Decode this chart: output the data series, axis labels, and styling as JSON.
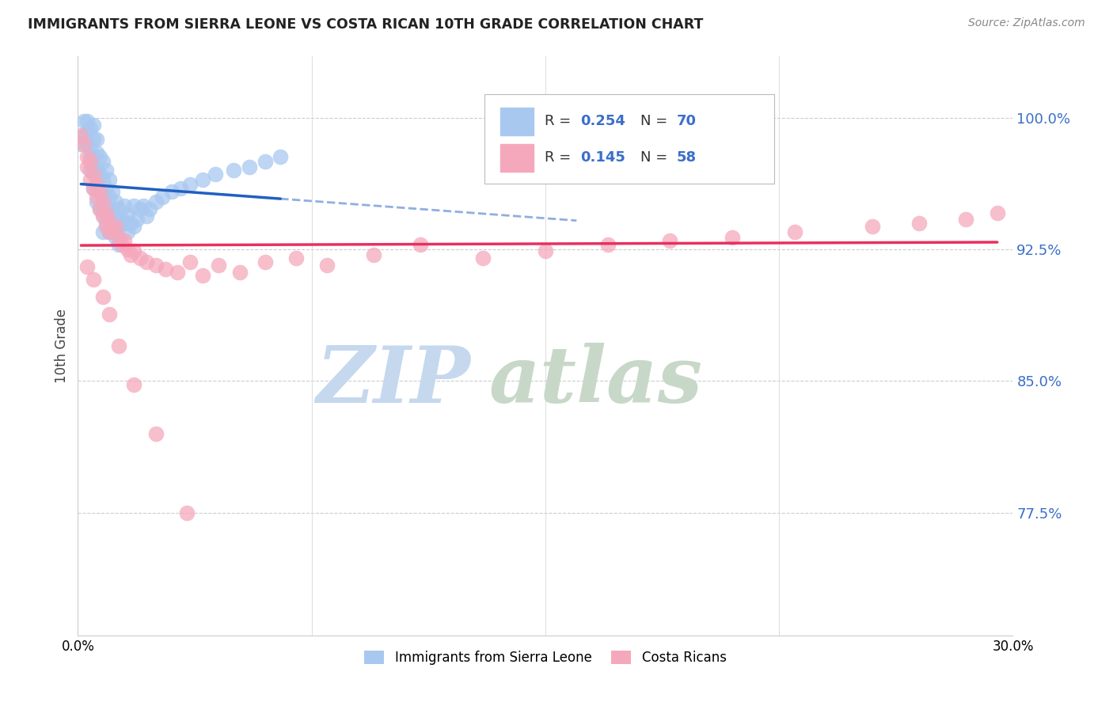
{
  "title": "IMMIGRANTS FROM SIERRA LEONE VS COSTA RICAN 10TH GRADE CORRELATION CHART",
  "source": "Source: ZipAtlas.com",
  "ylabel": "10th Grade",
  "ytick_values": [
    0.775,
    0.85,
    0.925,
    1.0
  ],
  "xlim": [
    0.0,
    0.3
  ],
  "ylim": [
    0.705,
    1.035
  ],
  "r_sierra": 0.254,
  "n_sierra": 70,
  "r_costa": 0.145,
  "n_costa": 58,
  "color_sierra": "#A8C8F0",
  "color_costa": "#F5A8BC",
  "color_sierra_line": "#2060C0",
  "color_costa_line": "#E83060",
  "color_r_text": "#3B6EC8",
  "grid_color": "#CCCCCC",
  "sierra_x": [
    0.001,
    0.002,
    0.002,
    0.003,
    0.003,
    0.003,
    0.004,
    0.004,
    0.004,
    0.004,
    0.005,
    0.005,
    0.005,
    0.005,
    0.005,
    0.006,
    0.006,
    0.006,
    0.006,
    0.006,
    0.007,
    0.007,
    0.007,
    0.007,
    0.008,
    0.008,
    0.008,
    0.008,
    0.008,
    0.009,
    0.009,
    0.009,
    0.009,
    0.01,
    0.01,
    0.01,
    0.01,
    0.011,
    0.011,
    0.011,
    0.012,
    0.012,
    0.012,
    0.013,
    0.013,
    0.013,
    0.014,
    0.015,
    0.015,
    0.016,
    0.016,
    0.017,
    0.018,
    0.018,
    0.019,
    0.02,
    0.021,
    0.022,
    0.023,
    0.025,
    0.027,
    0.03,
    0.033,
    0.036,
    0.04,
    0.044,
    0.05,
    0.055,
    0.06,
    0.065
  ],
  "sierra_y": [
    0.985,
    0.99,
    0.998,
    0.992,
    0.986,
    0.998,
    0.982,
    0.978,
    0.994,
    0.97,
    0.996,
    0.988,
    0.978,
    0.97,
    0.96,
    0.988,
    0.98,
    0.97,
    0.96,
    0.952,
    0.978,
    0.968,
    0.958,
    0.948,
    0.975,
    0.965,
    0.955,
    0.945,
    0.935,
    0.97,
    0.96,
    0.95,
    0.94,
    0.965,
    0.955,
    0.945,
    0.935,
    0.958,
    0.948,
    0.938,
    0.952,
    0.942,
    0.932,
    0.948,
    0.938,
    0.928,
    0.942,
    0.95,
    0.94,
    0.945,
    0.935,
    0.94,
    0.95,
    0.938,
    0.942,
    0.948,
    0.95,
    0.944,
    0.948,
    0.952,
    0.955,
    0.958,
    0.96,
    0.962,
    0.965,
    0.968,
    0.97,
    0.972,
    0.975,
    0.978
  ],
  "costa_x": [
    0.001,
    0.002,
    0.003,
    0.003,
    0.004,
    0.004,
    0.005,
    0.005,
    0.006,
    0.006,
    0.007,
    0.007,
    0.008,
    0.008,
    0.009,
    0.009,
    0.01,
    0.01,
    0.011,
    0.012,
    0.013,
    0.014,
    0.015,
    0.016,
    0.017,
    0.018,
    0.02,
    0.022,
    0.025,
    0.028,
    0.032,
    0.036,
    0.04,
    0.045,
    0.052,
    0.06,
    0.07,
    0.08,
    0.095,
    0.11,
    0.13,
    0.15,
    0.17,
    0.19,
    0.21,
    0.23,
    0.255,
    0.27,
    0.285,
    0.295,
    0.003,
    0.005,
    0.008,
    0.01,
    0.013,
    0.018,
    0.025,
    0.035
  ],
  "costa_y": [
    0.99,
    0.985,
    0.978,
    0.972,
    0.975,
    0.965,
    0.968,
    0.96,
    0.962,
    0.955,
    0.958,
    0.948,
    0.952,
    0.944,
    0.946,
    0.938,
    0.941,
    0.935,
    0.936,
    0.938,
    0.932,
    0.928,
    0.93,
    0.925,
    0.922,
    0.924,
    0.92,
    0.918,
    0.916,
    0.914,
    0.912,
    0.918,
    0.91,
    0.916,
    0.912,
    0.918,
    0.92,
    0.916,
    0.922,
    0.928,
    0.92,
    0.924,
    0.928,
    0.93,
    0.932,
    0.935,
    0.938,
    0.94,
    0.942,
    0.946,
    0.915,
    0.908,
    0.898,
    0.888,
    0.87,
    0.848,
    0.82,
    0.775
  ]
}
